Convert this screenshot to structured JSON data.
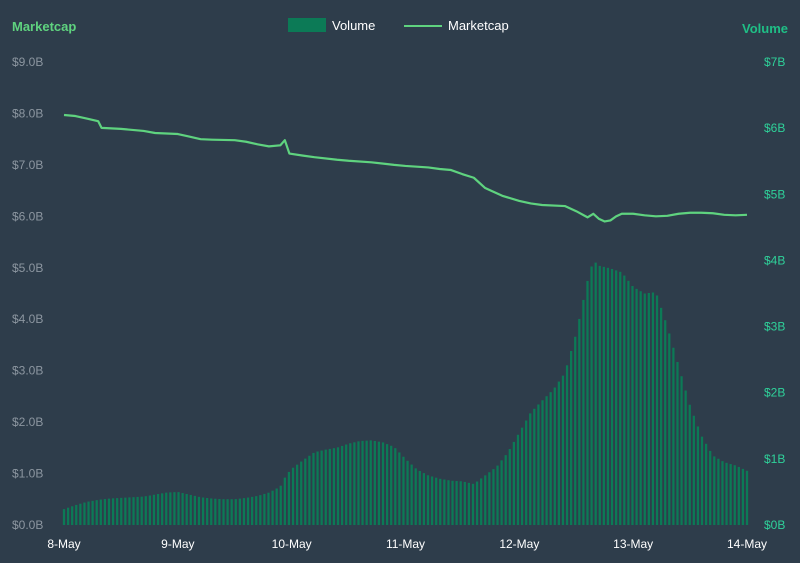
{
  "chart_data": {
    "type": "bar+line",
    "left_axis_title": "Marketcap",
    "right_axis_title": "Volume",
    "legend": [
      {
        "name": "Volume",
        "marker": "bar",
        "color": "#0c7a56"
      },
      {
        "name": "Marketcap",
        "marker": "line",
        "color": "#5fd37f"
      }
    ],
    "left_axis": {
      "label": "Marketcap",
      "ylim": [
        0,
        9000000000
      ],
      "ticks": [
        "$0.0B",
        "$1.0B",
        "$2.0B",
        "$3.0B",
        "$4.0B",
        "$5.0B",
        "$6.0B",
        "$7.0B",
        "$8.0B",
        "$9.0B"
      ],
      "tick_values": [
        0,
        1000000000,
        2000000000,
        3000000000,
        4000000000,
        5000000000,
        6000000000,
        7000000000,
        8000000000,
        9000000000
      ]
    },
    "right_axis": {
      "label": "Volume",
      "ylim": [
        0,
        7000000000
      ],
      "ticks": [
        "$0B",
        "$1B",
        "$2B",
        "$3B",
        "$4B",
        "$5B",
        "$6B",
        "$7B"
      ],
      "tick_values": [
        0,
        1000000000,
        2000000000,
        3000000000,
        4000000000,
        5000000000,
        6000000000,
        7000000000
      ]
    },
    "x_axis": {
      "range_days": [
        0,
        6
      ],
      "ticks": [
        "8-May",
        "9-May",
        "10-May",
        "11-May",
        "12-May",
        "13-May",
        "14-May"
      ],
      "tick_values": [
        0,
        1,
        2,
        3,
        4,
        5,
        6
      ]
    },
    "series": [
      {
        "name": "Marketcap",
        "type": "line",
        "axis": "left",
        "color": "#5fd37f",
        "points": [
          [
            0.0,
            7.97
          ],
          [
            0.1,
            7.95
          ],
          [
            0.2,
            7.9
          ],
          [
            0.3,
            7.85
          ],
          [
            0.33,
            7.72
          ],
          [
            0.5,
            7.7
          ],
          [
            0.7,
            7.66
          ],
          [
            0.8,
            7.62
          ],
          [
            1.0,
            7.6
          ],
          [
            1.1,
            7.55
          ],
          [
            1.2,
            7.5
          ],
          [
            1.3,
            7.49
          ],
          [
            1.5,
            7.48
          ],
          [
            1.6,
            7.45
          ],
          [
            1.7,
            7.4
          ],
          [
            1.8,
            7.36
          ],
          [
            1.9,
            7.38
          ],
          [
            1.94,
            7.48
          ],
          [
            1.98,
            7.22
          ],
          [
            2.1,
            7.18
          ],
          [
            2.2,
            7.15
          ],
          [
            2.4,
            7.1
          ],
          [
            2.5,
            7.08
          ],
          [
            2.7,
            7.05
          ],
          [
            2.9,
            7.0
          ],
          [
            3.0,
            6.98
          ],
          [
            3.2,
            6.95
          ],
          [
            3.3,
            6.92
          ],
          [
            3.4,
            6.9
          ],
          [
            3.5,
            6.82
          ],
          [
            3.6,
            6.75
          ],
          [
            3.7,
            6.55
          ],
          [
            3.75,
            6.5
          ],
          [
            3.85,
            6.4
          ],
          [
            4.0,
            6.3
          ],
          [
            4.1,
            6.25
          ],
          [
            4.2,
            6.22
          ],
          [
            4.4,
            6.2
          ],
          [
            4.5,
            6.1
          ],
          [
            4.6,
            5.98
          ],
          [
            4.65,
            6.05
          ],
          [
            4.7,
            5.95
          ],
          [
            4.75,
            5.9
          ],
          [
            4.8,
            5.92
          ],
          [
            4.85,
            6.0
          ],
          [
            4.9,
            6.05
          ],
          [
            5.0,
            6.05
          ],
          [
            5.1,
            6.02
          ],
          [
            5.2,
            6.0
          ],
          [
            5.3,
            6.01
          ],
          [
            5.4,
            6.05
          ],
          [
            5.5,
            6.07
          ],
          [
            5.6,
            6.07
          ],
          [
            5.7,
            6.06
          ],
          [
            5.8,
            6.03
          ],
          [
            5.9,
            6.02
          ],
          [
            6.0,
            6.03
          ]
        ]
      },
      {
        "name": "Volume",
        "type": "bar",
        "axis": "right",
        "color": "#0c7a56",
        "points": [
          [
            0.0,
            0.24
          ],
          [
            0.1,
            0.3
          ],
          [
            0.2,
            0.35
          ],
          [
            0.3,
            0.38
          ],
          [
            0.4,
            0.4
          ],
          [
            0.5,
            0.41
          ],
          [
            0.6,
            0.42
          ],
          [
            0.7,
            0.43
          ],
          [
            0.8,
            0.46
          ],
          [
            0.9,
            0.49
          ],
          [
            1.0,
            0.5
          ],
          [
            1.1,
            0.46
          ],
          [
            1.2,
            0.42
          ],
          [
            1.3,
            0.4
          ],
          [
            1.4,
            0.39
          ],
          [
            1.5,
            0.39
          ],
          [
            1.6,
            0.41
          ],
          [
            1.7,
            0.44
          ],
          [
            1.8,
            0.49
          ],
          [
            1.9,
            0.58
          ],
          [
            1.95,
            0.75
          ],
          [
            2.0,
            0.85
          ],
          [
            2.1,
            0.98
          ],
          [
            2.2,
            1.1
          ],
          [
            2.3,
            1.14
          ],
          [
            2.4,
            1.17
          ],
          [
            2.5,
            1.23
          ],
          [
            2.6,
            1.27
          ],
          [
            2.7,
            1.28
          ],
          [
            2.8,
            1.25
          ],
          [
            2.9,
            1.18
          ],
          [
            3.0,
            1.0
          ],
          [
            3.1,
            0.84
          ],
          [
            3.2,
            0.75
          ],
          [
            3.3,
            0.7
          ],
          [
            3.4,
            0.67
          ],
          [
            3.5,
            0.66
          ],
          [
            3.6,
            0.62
          ],
          [
            3.7,
            0.75
          ],
          [
            3.8,
            0.88
          ],
          [
            3.9,
            1.1
          ],
          [
            4.0,
            1.4
          ],
          [
            4.1,
            1.7
          ],
          [
            4.2,
            1.88
          ],
          [
            4.3,
            2.05
          ],
          [
            4.4,
            2.3
          ],
          [
            4.5,
            2.9
          ],
          [
            4.55,
            3.3
          ],
          [
            4.6,
            3.7
          ],
          [
            4.65,
            4.0
          ],
          [
            4.7,
            3.92
          ],
          [
            4.8,
            3.88
          ],
          [
            4.9,
            3.82
          ],
          [
            5.0,
            3.6
          ],
          [
            5.1,
            3.5
          ],
          [
            5.2,
            3.52
          ],
          [
            5.3,
            3.0
          ],
          [
            5.4,
            2.4
          ],
          [
            5.5,
            1.8
          ],
          [
            5.6,
            1.35
          ],
          [
            5.7,
            1.05
          ],
          [
            5.8,
            0.95
          ],
          [
            5.9,
            0.9
          ],
          [
            6.0,
            0.82
          ]
        ]
      }
    ]
  }
}
